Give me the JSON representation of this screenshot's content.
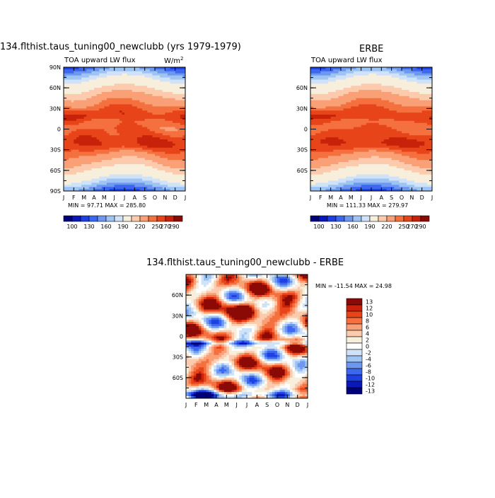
{
  "chart_data": [
    {
      "type": "heatmap",
      "id": "model",
      "title": "134.flthist.taus_tuning00_newclubb (yrs 1979-1979)",
      "subtitle": "TOA upward LW flux",
      "units": "W/m",
      "units_sup": "2",
      "x_ticks": [
        "J",
        "F",
        "M",
        "A",
        "M",
        "J",
        "J",
        "A",
        "S",
        "O",
        "N",
        "D",
        "J"
      ],
      "y_ticks": [
        "90N",
        "60N",
        "30N",
        "0",
        "30S",
        "60S",
        "90S"
      ],
      "ylim": [
        -90,
        90
      ],
      "stats": "MIN =  97.71 MAX = 285.80",
      "colorbar_labels": [
        "100",
        "130",
        "160",
        "190",
        "220",
        "250",
        "270",
        "290"
      ]
    },
    {
      "type": "heatmap",
      "id": "obs",
      "title": "ERBE",
      "subtitle": "TOA upward LW flux",
      "x_ticks": [
        "J",
        "F",
        "M",
        "A",
        "M",
        "J",
        "J",
        "A",
        "S",
        "O",
        "N",
        "D",
        "J"
      ],
      "y_ticks": [
        "60N",
        "30N",
        "0",
        "30S",
        "60S"
      ],
      "ylim": [
        -90,
        90
      ],
      "stats": "MIN = 111.33 MAX = 279.97",
      "colorbar_labels": [
        "100",
        "130",
        "160",
        "190",
        "220",
        "250",
        "270",
        "290"
      ]
    },
    {
      "type": "heatmap",
      "id": "diff",
      "title": "134.flthist.taus_tuning00_newclubb - ERBE",
      "x_ticks": [
        "J",
        "F",
        "M",
        "A",
        "M",
        "J",
        "J",
        "A",
        "S",
        "O",
        "N",
        "D",
        "J"
      ],
      "y_ticks": [
        "60N",
        "30N",
        "0",
        "30S",
        "60S"
      ],
      "ylim": [
        -90,
        90
      ],
      "stats": "MIN = -11.54 MAX =  24.98",
      "colorbar_labels": [
        "13",
        "12",
        "10",
        "8",
        "6",
        "4",
        "2",
        "0",
        "-2",
        "-4",
        "-6",
        "-8",
        "-10",
        "-12",
        "-13"
      ]
    }
  ],
  "colors": {
    "flux_scale": [
      "#00007a",
      "#0b18b8",
      "#1e40e0",
      "#3c68f0",
      "#6e98f0",
      "#9ec4f4",
      "#cfe2f8",
      "#f7eedc",
      "#fccbae",
      "#f9a077",
      "#f4713f",
      "#e8441a",
      "#c8220a",
      "#8c0a05"
    ],
    "diff_scale": [
      "#8c0a05",
      "#c8220a",
      "#e8441a",
      "#f4713f",
      "#f9a077",
      "#fccbae",
      "#f7eedc",
      "#ffffff",
      "#cfe2f8",
      "#9ec4f4",
      "#6e98f0",
      "#3c68f0",
      "#1e40e0",
      "#0b18b8",
      "#00007a"
    ]
  }
}
